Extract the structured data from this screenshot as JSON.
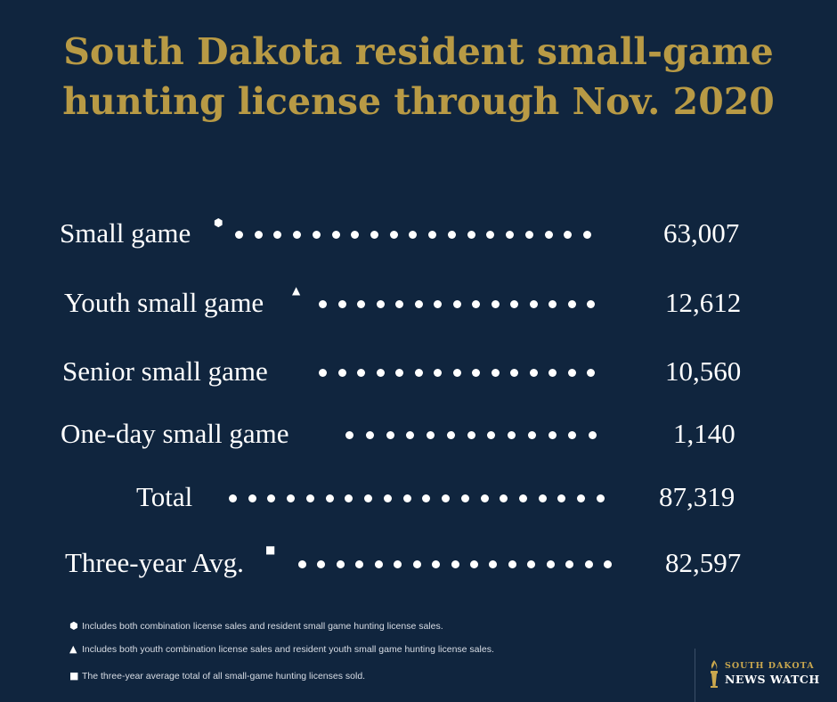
{
  "title": {
    "line1": "South Dakota resident small-game",
    "line2": "hunting  license through Nov. 2020"
  },
  "rows": [
    {
      "label": "Small game",
      "mark": "⬢",
      "value": "63,007",
      "dots": 19
    },
    {
      "label": "Youth small game",
      "mark": "▲",
      "value": "12,612",
      "dots": 15
    },
    {
      "label": "Senior small game",
      "mark": "",
      "value": "10,560",
      "dots": 15
    },
    {
      "label": "One-day small game",
      "mark": "",
      "value": "1,140",
      "dots": 13
    },
    {
      "label": "Total",
      "mark": "",
      "value": "87,319",
      "dots": 20
    },
    {
      "label": "Three-year Avg.",
      "mark": "■",
      "value": "82,597",
      "dots": 17
    }
  ],
  "notes": [
    {
      "symbol": "⬢",
      "text": "Includes both combination license sales and resident small game hunting license sales."
    },
    {
      "symbol": "▲",
      "text": "Includes both youth combination license sales and resident youth small game hunting license sales."
    },
    {
      "symbol": "■",
      "text": "The three-year average total of all small-game hunting licenses sold."
    }
  ],
  "logo": {
    "line1": "SOUTH DAKOTA",
    "line2": "NEWS WATCH",
    "icon": "torch-icon"
  },
  "colors": {
    "background": "#10253e",
    "title": "#b89a45",
    "logo_accent": "#c9a74e"
  }
}
